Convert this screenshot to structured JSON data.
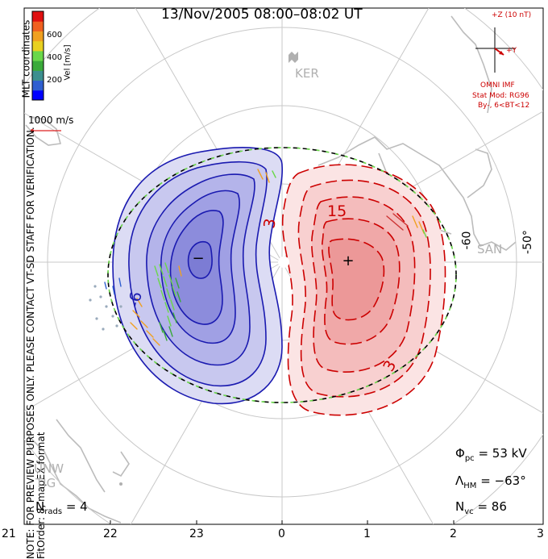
{
  "title": "13/Nov/2005 08:00–08:02 UT",
  "side_note": {
    "line1": "NOTE: FOR PREVIEW PURPOSES ONLY. PLEASE CONTACT VT-SD STAFF FOR VERIFICATION.",
    "line2": "FitOrder: 8, mapEX format"
  },
  "coordinates_label": "MLT coordinates",
  "colorbar": {
    "label": "Vel [m/s]",
    "ticks": [
      "600",
      "400",
      "200"
    ],
    "colors": [
      "#0000ff",
      "#2f5fd0",
      "#3c8f8f",
      "#3aaa3a",
      "#6ad84a",
      "#e8d020",
      "#f0a020",
      "#f06020",
      "#e01010"
    ]
  },
  "velocity_scale": "1000 m/s",
  "imf": {
    "z_label": "+Z (10 nT)",
    "y_label": "+Y",
    "source": "OMNI IMF",
    "model": "Stat Mod: RG96",
    "condition": "By-, 6<BT<12"
  },
  "stations": [
    "KER",
    "SAN",
    "UNW",
    "TIG"
  ],
  "latitude_labels": [
    "-60",
    "-50°"
  ],
  "contour_labels": [
    "-6",
    "3",
    "15",
    "3"
  ],
  "stats": {
    "phi_pc_label": "Φ",
    "phi_pc_sub": "pc",
    "phi_pc_value": "= 53 kV",
    "lambda_label": "Λ",
    "lambda_sub": "HM",
    "lambda_value": "= −63°",
    "nvc_label": "N",
    "nvc_sub": "vc",
    "nvc_value": "= 86",
    "nrads_label": "N",
    "nrads_sub": "rads",
    "nrads_value": "= 4"
  },
  "mlt_ticks": [
    "21",
    "22",
    "23",
    "0",
    "1",
    "2",
    "3"
  ],
  "colors": {
    "negative_cell": "#1a1ab0",
    "positive_cell": "#cc0000",
    "coast": "#b8b8b8",
    "grid": "#c8c8c8"
  },
  "markers": {
    "min": "−",
    "max": "+"
  }
}
